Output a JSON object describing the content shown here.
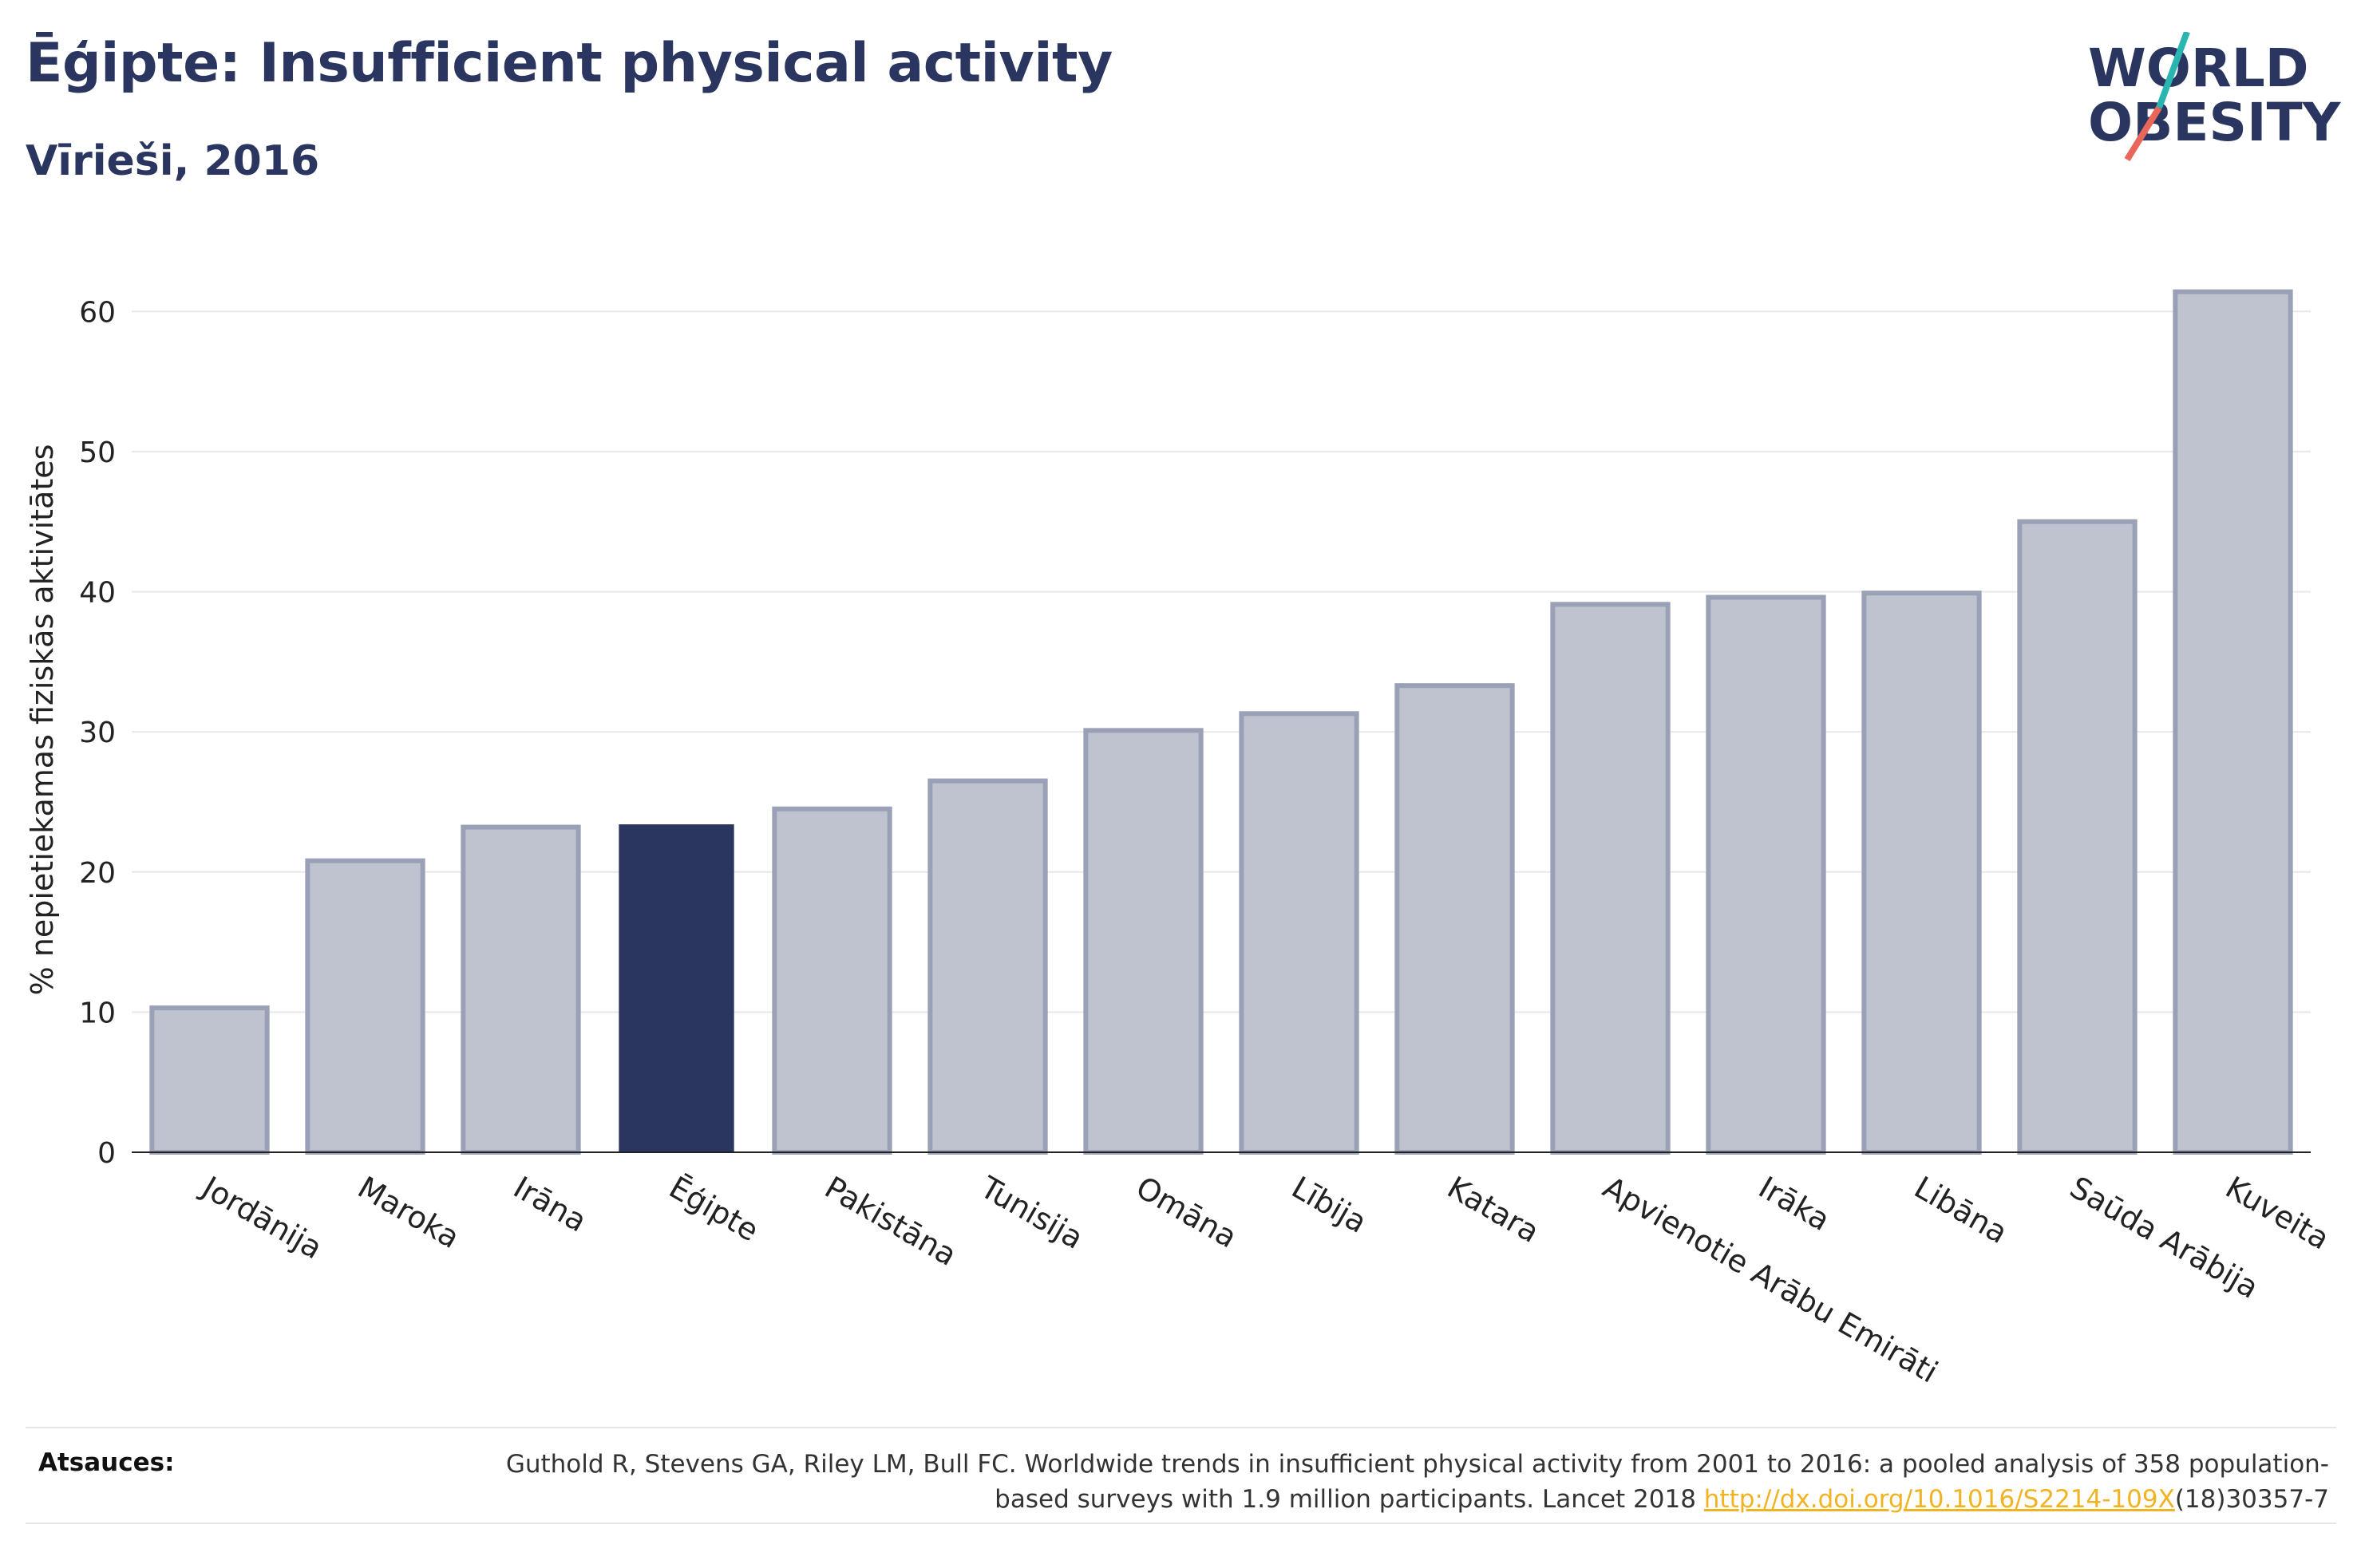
{
  "title": "Ēģipte: Insufficient physical activity",
  "subtitle": "Vīrieši, 2016",
  "logo": {
    "line1": "WORLD",
    "line2": "OBESITY",
    "accent_colors": [
      "#2bb5b0",
      "#e8665a"
    ]
  },
  "colors": {
    "highlight": "#2a3560",
    "bar_fill": "#bfc3d0",
    "bar_stroke": "#9aa0b6",
    "grid": "#e8e8e8",
    "axis": "#222222"
  },
  "chart_data": {
    "type": "bar",
    "categories": [
      "Jordānija",
      "Maroka",
      "Irāna",
      "Ēģipte",
      "Pakistāna",
      "Tunisija",
      "Omāna",
      "Lībija",
      "Katara",
      "Apvienotie Arābu Emirāti",
      "Irāka",
      "Libāna",
      "Saūda Arābija",
      "Kuveita"
    ],
    "values": [
      10.3,
      20.8,
      23.2,
      23.4,
      24.5,
      26.5,
      30.1,
      31.3,
      33.3,
      39.1,
      39.6,
      39.9,
      45.0,
      61.4
    ],
    "highlight": "Ēģipte",
    "ylabel": "% nepietiekamas fiziskās aktivitātes",
    "yticks": [
      0,
      10,
      20,
      30,
      40,
      50,
      60
    ],
    "ylim": [
      0,
      64
    ],
    "grid": true
  },
  "sources": {
    "label": "Atsauces:",
    "text_before": "Guthold R, Stevens GA, Riley LM, Bull FC. Worldwide trends in insufficient physical activity from 2001 to 2016: a pooled analysis of 358 population-based surveys with 1.9 million participants. Lancet 2018 ",
    "link": "http://dx.doi.org/10.1016/S2214-109X",
    "text_after": "(18)30357-7"
  }
}
